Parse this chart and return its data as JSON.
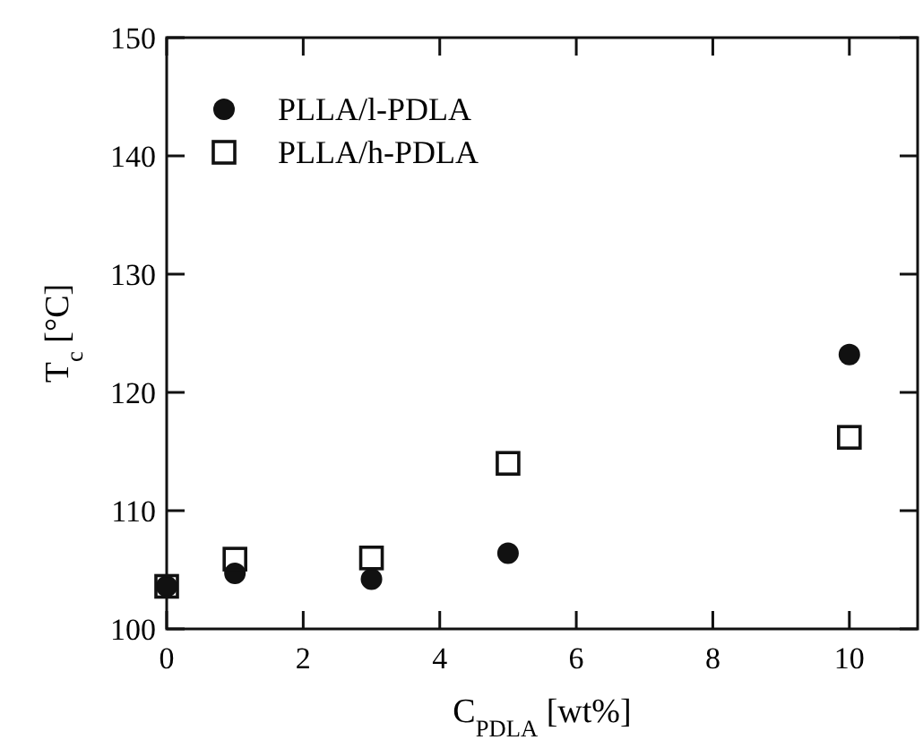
{
  "chart_data": {
    "type": "scatter",
    "xlabel": "C$_{PDLA}$ [wt%]",
    "ylabel": "T$_{c}$ [°C]",
    "x": [
      0,
      1,
      3,
      5,
      10
    ],
    "series": [
      {
        "name": "PLLA/l-PDLA",
        "color": "#111111",
        "marker": "circle",
        "values": [
          103.6,
          104.7,
          104.2,
          106.4,
          123.2
        ]
      },
      {
        "name": "PLLA/h-PDLA",
        "color": "#111111",
        "marker": "square",
        "values": [
          103.6,
          105.9,
          106.0,
          114.0,
          116.2
        ]
      }
    ],
    "xlim": [
      0,
      11
    ],
    "xticks": [
      0,
      2,
      4,
      6,
      8,
      10
    ],
    "ylim": [
      100,
      150
    ],
    "yticks": [
      100,
      110,
      120,
      130,
      140,
      150
    ],
    "legend": "top left",
    "grid": false
  }
}
